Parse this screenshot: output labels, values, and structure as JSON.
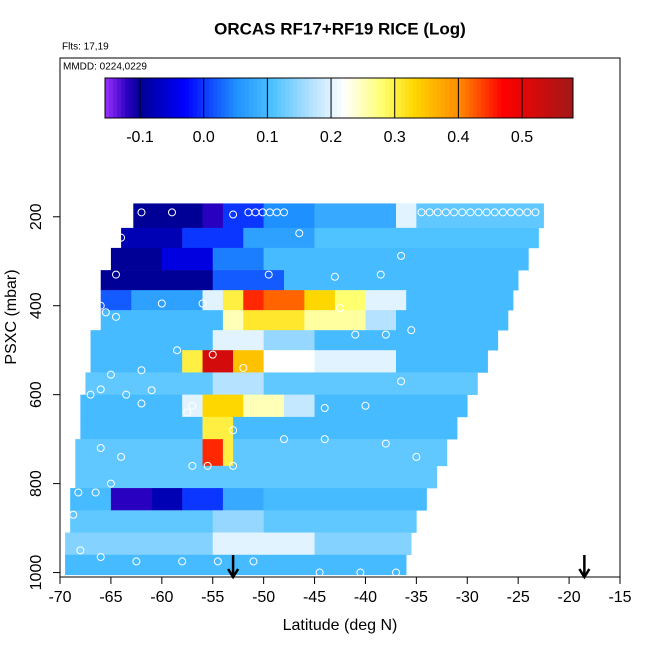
{
  "chart_data": {
    "type": "heatmap",
    "title": "ORCAS RF17+RF19 RICE (Log)",
    "flights_note": "Flts: 17,19",
    "date_note": "MMDD: 0224,0229",
    "x_label": "Latitude (deg N)",
    "y_label": "PSXC (mbar)",
    "xlim": [
      -70,
      -15
    ],
    "xticks": [
      -70,
      -65,
      -60,
      -55,
      -50,
      -45,
      -40,
      -35,
      -30,
      -25,
      -20,
      -15
    ],
    "ylim": [
      1010,
      -157
    ],
    "yticks": [
      200,
      400,
      600,
      800,
      1000
    ],
    "colorbar": {
      "lim": [
        -0.155,
        0.58
      ],
      "ticks": [
        -0.1,
        {
          "value": 0,
          "label": "0.0"
        },
        0.1,
        0.2,
        0.3,
        0.4,
        0.5
      ],
      "stops": [
        [
          -0.155,
          "#9a30ff"
        ],
        [
          -0.12,
          "#2a00c0"
        ],
        [
          -0.1,
          "#000096"
        ],
        [
          -0.03,
          "#0000ff"
        ],
        [
          0.05,
          "#1e90ff"
        ],
        [
          0.11,
          "#4fc3ff"
        ],
        [
          0.16,
          "#a6dcff"
        ],
        [
          0.22,
          "#ffffff"
        ],
        [
          0.28,
          "#ffff70"
        ],
        [
          0.33,
          "#ffd700"
        ],
        [
          0.4,
          "#ff8c00"
        ],
        [
          0.47,
          "#ff0000"
        ],
        [
          0.58,
          "#a01818"
        ]
      ]
    },
    "rows": [
      {
        "p": [
          170,
          225
        ],
        "edges": [
          -62.8,
          -56,
          -54,
          -50,
          -45,
          -37,
          -35,
          -22.5
        ],
        "values": [
          -0.1,
          -0.12,
          0.0,
          0.05,
          0.08,
          0.2,
          0.12
        ]
      },
      {
        "p": [
          225,
          270
        ],
        "edges": [
          -64,
          -58,
          -52,
          -45,
          -23
        ],
        "values": [
          -0.08,
          0.0,
          0.07,
          0.11
        ]
      },
      {
        "p": [
          270,
          320
        ],
        "edges": [
          -65,
          -60,
          -55,
          -50,
          -24
        ],
        "values": [
          -0.1,
          -0.05,
          0.04,
          0.1
        ]
      },
      {
        "p": [
          320,
          365
        ],
        "edges": [
          -66,
          -55,
          -48,
          -25
        ],
        "values": [
          -0.1,
          0.02,
          0.1
        ]
      },
      {
        "p": [
          365,
          410
        ],
        "edges": [
          -66,
          -63,
          -56,
          -54,
          -52,
          -50,
          -46,
          -43,
          -40,
          -36,
          -25.5
        ],
        "values": [
          0.02,
          0.07,
          0.2,
          0.3,
          0.45,
          0.42,
          0.33,
          0.28,
          0.2,
          0.1
        ]
      },
      {
        "p": [
          410,
          455
        ],
        "edges": [
          -66,
          -54,
          -52,
          -46,
          -40,
          -37,
          -26
        ],
        "values": [
          0.1,
          0.25,
          0.31,
          0.26,
          0.17,
          0.1
        ]
      },
      {
        "p": [
          455,
          500
        ],
        "edges": [
          -67,
          -55,
          -50,
          -45,
          -27
        ],
        "values": [
          0.1,
          0.2,
          0.15,
          0.1
        ]
      },
      {
        "p": [
          500,
          550
        ],
        "edges": [
          -67,
          -58,
          -56,
          -53,
          -50,
          -45,
          -37,
          -28
        ],
        "values": [
          0.1,
          0.3,
          0.52,
          0.35,
          0.22,
          0.2,
          0.1
        ]
      },
      {
        "p": [
          550,
          600
        ],
        "edges": [
          -67.5,
          -55,
          -50,
          -29
        ],
        "values": [
          0.12,
          0.17,
          0.12
        ]
      },
      {
        "p": [
          600,
          650
        ],
        "edges": [
          -68,
          -58,
          -56,
          -52,
          -48,
          -45,
          -30
        ],
        "values": [
          0.1,
          0.2,
          0.33,
          0.25,
          0.18,
          0.1
        ]
      },
      {
        "p": [
          650,
          700
        ],
        "edges": [
          -68,
          -56,
          -53,
          -31
        ],
        "values": [
          0.1,
          0.3,
          0.1
        ]
      },
      {
        "p": [
          700,
          760
        ],
        "edges": [
          -68.5,
          -56,
          -54,
          -53,
          -32
        ],
        "values": [
          0.12,
          0.45,
          0.3,
          0.12
        ]
      },
      {
        "p": [
          760,
          810
        ],
        "edges": [
          -68.5,
          -33
        ],
        "values": [
          0.12
        ]
      },
      {
        "p": [
          810,
          860
        ],
        "edges": [
          -69,
          -65,
          -61,
          -58,
          -54,
          -50,
          -34
        ],
        "values": [
          0.1,
          -0.12,
          -0.08,
          0.0,
          0.08,
          0.1
        ]
      },
      {
        "p": [
          860,
          910
        ],
        "edges": [
          -69,
          -55,
          -50,
          -35
        ],
        "values": [
          0.12,
          0.15,
          0.12
        ]
      },
      {
        "p": [
          910,
          960
        ],
        "edges": [
          -69.5,
          -55,
          -45,
          -35.5
        ],
        "values": [
          0.14,
          0.2,
          0.14
        ]
      },
      {
        "p": [
          960,
          1005
        ],
        "edges": [
          -69.5,
          -36
        ],
        "values": [
          0.1
        ]
      }
    ],
    "points": {
      "lat": [
        -62,
        -59,
        -53,
        -51.5,
        -50.8,
        -50.1,
        -49.4,
        -48.7,
        -48,
        -34.5,
        -33.7,
        -32.9,
        -32.1,
        -31.3,
        -30.5,
        -29.7,
        -28.9,
        -28.1,
        -27.3,
        -26.5,
        -25.7,
        -24.9,
        -24.1,
        -23.3,
        -46.5,
        -64,
        -36.5,
        -64.5,
        -49.5,
        -43,
        -38.5,
        -60,
        -56,
        -66,
        -65.5,
        -64.5,
        -42.5,
        -41,
        -38,
        -35.5,
        -58.5,
        -55,
        -62,
        -52,
        -65,
        -66,
        -61,
        -57,
        -44,
        -40,
        -36.5,
        -67,
        -63.5,
        -62,
        -57.5,
        -53,
        -48,
        -44,
        -38,
        -35,
        -66,
        -64,
        -57,
        -53,
        -55.5,
        -65,
        -66.5,
        -68.2,
        -68.7,
        -68,
        -66,
        -62.5,
        -58,
        -54.5,
        -51,
        -44.5,
        -40.5,
        -37
      ],
      "p": [
        190,
        190,
        195,
        190,
        190,
        190,
        190,
        190,
        190,
        190,
        190,
        190,
        190,
        190,
        190,
        190,
        190,
        190,
        190,
        190,
        190,
        190,
        190,
        190,
        237,
        247,
        288,
        330,
        330,
        335,
        330,
        395,
        395,
        400,
        415,
        425,
        405,
        465,
        465,
        455,
        500,
        510,
        545,
        540,
        555,
        588,
        590,
        625,
        630,
        625,
        570,
        600,
        600,
        620,
        640,
        680,
        700,
        700,
        710,
        740,
        720,
        740,
        760,
        760,
        760,
        800,
        820,
        820,
        870,
        950,
        965,
        975,
        975,
        975,
        975,
        1000,
        1000,
        1000
      ]
    },
    "arrows": [
      -53,
      -18.5
    ]
  }
}
